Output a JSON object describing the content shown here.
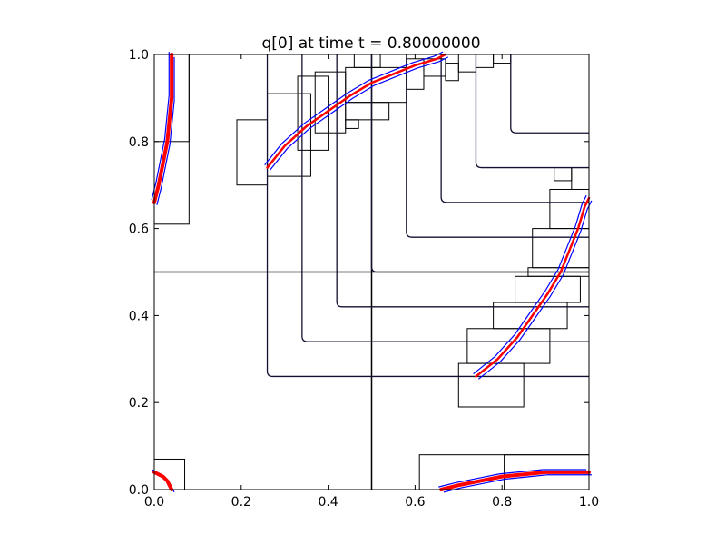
{
  "chart_data": {
    "type": "line",
    "title": "q[0] at time t =      0.80000000",
    "xlim": [
      0.0,
      1.0
    ],
    "ylim": [
      0.0,
      1.0
    ],
    "xticks": [
      "0.0",
      "0.2",
      "0.4",
      "0.6",
      "0.8",
      "1.0"
    ],
    "yticks": [
      "0.0",
      "0.2",
      "0.4",
      "0.6",
      "0.8",
      "1.0"
    ],
    "xlabel": "",
    "ylabel": "",
    "colors": {
      "frame": "#000000",
      "contour": "#000000",
      "blue": "#0000ff",
      "red": "#ff0000"
    },
    "coarse_grid_lines": [
      [
        [
          0.5,
          0.0
        ],
        [
          0.5,
          1.0
        ]
      ],
      [
        [
          0.0,
          0.5
        ],
        [
          1.0,
          0.5
        ]
      ]
    ],
    "refinement_patches": [
      [
        0.0,
        0.61,
        0.08,
        1.0
      ],
      [
        0.0,
        0.8,
        0.08,
        1.0
      ],
      [
        0.0,
        0.0,
        0.07,
        0.07
      ],
      [
        0.61,
        0.0,
        1.0,
        0.08
      ],
      [
        0.805,
        0.0,
        1.0,
        0.08
      ],
      [
        0.19,
        0.7,
        0.26,
        0.85
      ],
      [
        0.26,
        0.72,
        0.36,
        0.91
      ],
      [
        0.33,
        0.78,
        0.4,
        0.95
      ],
      [
        0.37,
        0.82,
        0.44,
        0.96
      ],
      [
        0.44,
        0.85,
        0.54,
        0.89
      ],
      [
        0.44,
        0.83,
        0.47,
        0.85
      ],
      [
        0.44,
        0.89,
        0.58,
        0.97
      ],
      [
        0.58,
        0.92,
        0.62,
        0.99
      ],
      [
        0.62,
        0.95,
        0.67,
        0.99
      ],
      [
        0.67,
        0.94,
        0.7,
        0.98
      ],
      [
        0.7,
        0.96,
        0.74,
        1.0
      ],
      [
        0.74,
        0.97,
        0.78,
        1.0
      ],
      [
        0.46,
        0.97,
        0.52,
        1.0
      ],
      [
        0.78,
        0.98,
        0.82,
        1.0
      ],
      [
        0.7,
        0.19,
        0.85,
        0.29
      ],
      [
        0.72,
        0.29,
        0.91,
        0.37
      ],
      [
        0.78,
        0.37,
        0.95,
        0.43
      ],
      [
        0.83,
        0.43,
        0.98,
        0.49
      ],
      [
        0.86,
        0.49,
        1.0,
        0.51
      ],
      [
        0.87,
        0.51,
        1.0,
        0.6
      ],
      [
        0.91,
        0.6,
        1.0,
        0.69
      ],
      [
        0.96,
        0.69,
        1.0,
        0.74
      ],
      [
        0.92,
        0.71,
        0.96,
        0.74
      ]
    ],
    "contour_levels": [
      {
        "x": 0.26,
        "y": 0.26
      },
      {
        "x": 0.34,
        "y": 0.34
      },
      {
        "x": 0.42,
        "y": 0.42
      },
      {
        "x": 0.5,
        "y": 0.5
      },
      {
        "x": 0.58,
        "y": 0.58
      },
      {
        "x": 0.66,
        "y": 0.66
      },
      {
        "x": 0.74,
        "y": 0.74
      },
      {
        "x": 0.82,
        "y": 0.82
      }
    ],
    "front_main": [
      [
        0.26,
        0.74
      ],
      [
        0.3,
        0.79
      ],
      [
        0.35,
        0.835
      ],
      [
        0.4,
        0.87
      ],
      [
        0.45,
        0.905
      ],
      [
        0.5,
        0.935
      ],
      [
        0.55,
        0.955
      ],
      [
        0.6,
        0.975
      ],
      [
        0.65,
        0.99
      ],
      [
        0.67,
        1.0
      ]
    ],
    "front_right": [
      [
        0.74,
        0.26
      ],
      [
        0.79,
        0.3
      ],
      [
        0.835,
        0.35
      ],
      [
        0.87,
        0.4
      ],
      [
        0.905,
        0.45
      ],
      [
        0.935,
        0.5
      ],
      [
        0.955,
        0.55
      ],
      [
        0.975,
        0.6
      ],
      [
        0.99,
        0.65
      ],
      [
        1.0,
        0.67
      ]
    ],
    "front_left_top": [
      [
        0.0,
        0.66
      ],
      [
        0.01,
        0.7
      ],
      [
        0.02,
        0.75
      ],
      [
        0.03,
        0.8
      ],
      [
        0.035,
        0.85
      ],
      [
        0.04,
        0.9
      ],
      [
        0.04,
        0.95
      ],
      [
        0.04,
        1.0
      ]
    ],
    "front_bottom_right": [
      [
        0.66,
        0.0
      ],
      [
        0.7,
        0.01
      ],
      [
        0.75,
        0.02
      ],
      [
        0.8,
        0.03
      ],
      [
        0.85,
        0.035
      ],
      [
        0.9,
        0.04
      ],
      [
        0.95,
        0.04
      ],
      [
        1.0,
        0.04
      ]
    ],
    "front_corner": [
      [
        0.0,
        0.04
      ],
      [
        0.01,
        0.035
      ],
      [
        0.02,
        0.03
      ],
      [
        0.03,
        0.02
      ],
      [
        0.035,
        0.01
      ],
      [
        0.04,
        0.0
      ]
    ]
  }
}
